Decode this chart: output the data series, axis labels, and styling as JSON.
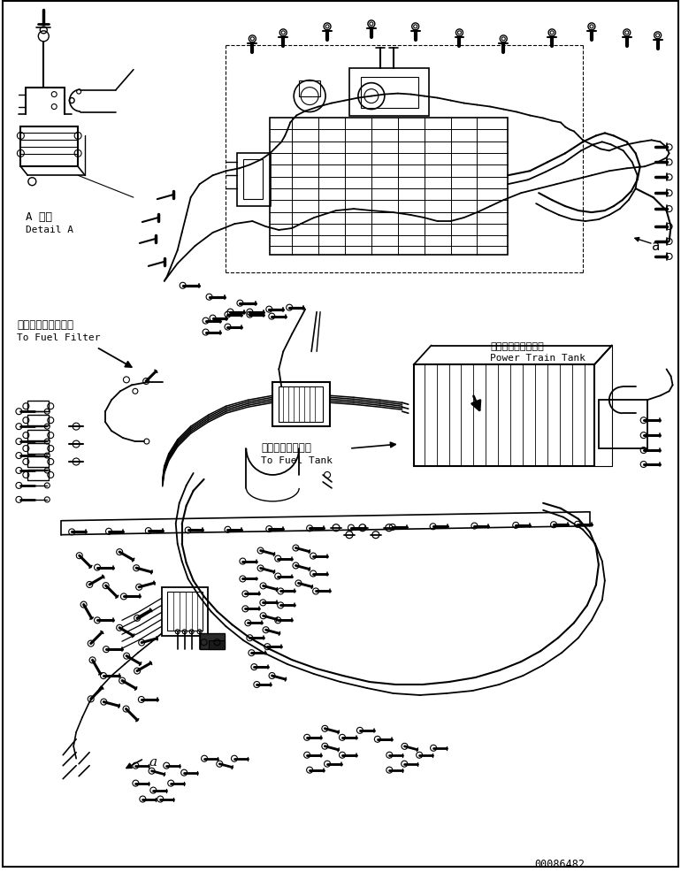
{
  "bg_color": "#ffffff",
  "line_color": "#000000",
  "fig_width": 7.7,
  "fig_height": 9.87,
  "dpi": 100,
  "part_number": "00086482",
  "labels": {
    "detail_a_jp": "A 詳細",
    "detail_a_en": "Detail A",
    "fuel_filter_jp": "フェエルフィルタへ",
    "fuel_filter_en": "To Fuel Filter",
    "fuel_tank_jp": "フュエルタンクへ",
    "fuel_tank_en": "To Fuel Tank",
    "power_train_jp": "パワートレンタンク",
    "power_train_en": "Power Train Tank",
    "label_a_top": "a",
    "label_a_bottom": "a"
  }
}
